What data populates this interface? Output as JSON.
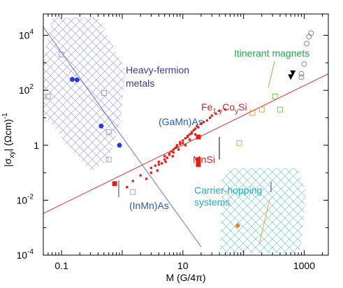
{
  "chart_data": {
    "type": "scatter",
    "title": "",
    "xlabel": "M (G/4π)",
    "ylabel_parts": {
      "pre": "|σ",
      "sub": "xy",
      "post": "| (Ωcm)",
      "sup": "-1"
    },
    "x_scale": "log",
    "y_scale": "log",
    "xlim": [
      0.05,
      2500
    ],
    "ylim": [
      0.0001,
      60000
    ],
    "x_ticks": [
      {
        "value": 0.1,
        "label": "0.1"
      },
      {
        "value": 10,
        "label": "10"
      },
      {
        "value": 1000,
        "label": "1000"
      }
    ],
    "y_ticks": [
      {
        "value": 10000,
        "base": "10",
        "exp": "4"
      },
      {
        "value": 100,
        "base": "10",
        "exp": "2"
      },
      {
        "value": 1,
        "base": "1",
        "exp": ""
      },
      {
        "value": 0.01,
        "base": "10",
        "exp": "-2"
      },
      {
        "value": 0.0001,
        "base": "10",
        "exp": "-4"
      }
    ],
    "regions": [
      {
        "label_lines": [
          "Heavy-fermion",
          "metals"
        ],
        "color": "#3a3aa0"
      },
      {
        "label_lines": [
          "Itinerant magnets"
        ],
        "color": "#22aa44"
      },
      {
        "label_lines": [
          "Carrier-hopping",
          "systems"
        ],
        "color": "#22aacc"
      }
    ],
    "material_labels": [
      {
        "text": "(GaMn)As",
        "color": "#2a5cad"
      },
      {
        "text": "(InMn)As",
        "color": "#2a5cad"
      },
      {
        "text": "MnSi",
        "color": "#e0201a"
      }
    ],
    "fesi_label": {
      "pre": "Fe",
      "sub1": "1-y",
      "mid": "Co",
      "sub2": "y",
      "post": "Si",
      "color": "#e0201a"
    },
    "fit_lines": [
      {
        "name": "",
        "color": "#e03030",
        "points": [
          [
            0.05,
            0.0033
          ],
          [
            2500,
            400
          ]
        ]
      },
      {
        "name": "",
        "color": "#7070e0",
        "points": [
          [
            0.05,
            20000
          ],
          [
            20,
            0.0002
          ]
        ]
      }
    ],
    "series": [
      {
        "name": "",
        "marker": "dot",
        "color": "#e0201a",
        "points": [
          [
            1.5,
            0.05
          ],
          [
            2,
            0.08
          ],
          [
            3,
            0.1
          ],
          [
            3,
            0.15
          ],
          [
            3.5,
            0.18
          ],
          [
            4,
            0.2
          ],
          [
            4,
            0.25
          ],
          [
            4.5,
            0.22
          ],
          [
            5,
            0.3
          ],
          [
            5,
            0.4
          ],
          [
            5.5,
            0.35
          ],
          [
            6,
            0.5
          ],
          [
            6,
            0.45
          ],
          [
            6.5,
            0.6
          ],
          [
            7,
            0.7
          ],
          [
            7,
            0.55
          ],
          [
            7.5,
            0.8
          ],
          [
            8,
            1
          ],
          [
            8,
            0.9
          ],
          [
            9,
            1.1
          ],
          [
            9,
            1.3
          ],
          [
            10,
            1.5
          ],
          [
            10,
            1.2
          ],
          [
            11,
            1.8
          ],
          [
            12,
            2
          ],
          [
            12,
            2.2
          ],
          [
            13,
            2.5
          ],
          [
            14,
            3
          ],
          [
            14,
            2.7
          ],
          [
            15,
            3.5
          ],
          [
            16,
            4
          ],
          [
            17,
            5
          ],
          [
            18,
            4.5
          ],
          [
            20,
            6
          ],
          [
            22,
            7
          ],
          [
            25,
            8
          ],
          [
            28,
            10
          ],
          [
            30,
            12
          ],
          [
            35,
            14
          ],
          [
            40,
            18
          ],
          [
            50,
            20
          ],
          [
            1.2,
            0.03
          ],
          [
            2.5,
            0.06
          ],
          [
            3.8,
            0.12
          ],
          [
            5.2,
            0.25
          ],
          [
            6.8,
            0.4
          ],
          [
            8.5,
            0.7
          ],
          [
            11,
            1
          ],
          [
            13,
            1.6
          ],
          [
            16,
            2.5
          ]
        ]
      },
      {
        "name": "",
        "marker": "square",
        "color": "#e0201a",
        "points": [
          [
            0.75,
            0.04
          ],
          [
            18,
            2
          ],
          [
            18,
            0.3
          ],
          [
            18,
            0.2
          ]
        ]
      },
      {
        "name": "",
        "marker": "filled-blue",
        "color": "#2a3ad8",
        "points": [
          [
            0.15,
            250
          ],
          [
            0.18,
            240
          ],
          [
            0.45,
            5
          ],
          [
            0.9,
            1
          ]
        ]
      },
      {
        "name": "",
        "marker": "open-blue",
        "color": "#9090d0",
        "points": [
          [
            0.06,
            60
          ],
          [
            0.1,
            2000
          ],
          [
            0.5,
            80
          ],
          [
            0.6,
            0.3
          ],
          [
            0.6,
            3
          ],
          [
            1.5,
            0.02
          ]
        ]
      },
      {
        "name": "",
        "marker": "open-green",
        "color": "#70d040",
        "points": [
          [
            330,
            60
          ],
          [
            400,
            20
          ]
        ]
      },
      {
        "name": "",
        "marker": "open-orange",
        "color": "#f0a040",
        "points": [
          [
            85,
            1.2
          ],
          [
            140,
            15
          ],
          [
            200,
            20
          ]
        ]
      },
      {
        "name": "",
        "marker": "open-gray",
        "color": "#888888",
        "points": [
          [
            1100,
            5000
          ],
          [
            1200,
            9000
          ],
          [
            1300,
            12000
          ],
          [
            1000,
            900
          ],
          [
            900,
            300
          ],
          [
            900,
            400
          ]
        ]
      },
      {
        "name": "",
        "marker": "filled-black",
        "color": "#000000",
        "points": [
          [
            600,
            300
          ],
          [
            650,
            420
          ]
        ]
      },
      {
        "name": "",
        "marker": "diamond-orange",
        "color": "#f08020",
        "points": [
          [
            80,
            0.0012
          ]
        ]
      }
    ]
  }
}
